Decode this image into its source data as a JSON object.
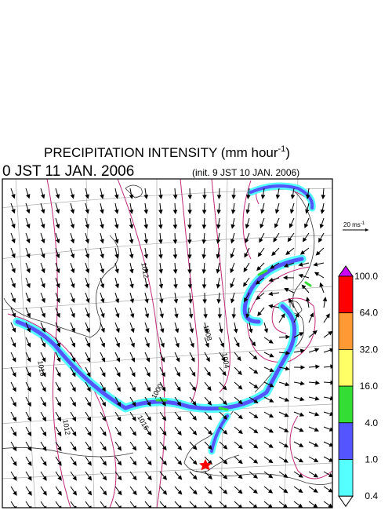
{
  "title": {
    "text": "PRECIPITATION INTENSITY (mm hour",
    "sup": "-1",
    "close": ")"
  },
  "valid_time": "0 JST 11 JAN. 2006",
  "init_time": "(init. 9 JST 10 JAN. 2006)",
  "wind_scale": {
    "label": "20 ms",
    "sup": "-1"
  },
  "colorbar": {
    "levels": [
      "100.0",
      "64.0",
      "32.0",
      "16.0",
      "4.0",
      "1.0",
      "0.4"
    ],
    "colors": [
      "#ff0000",
      "#ff9933",
      "#ffff66",
      "#33dd33",
      "#5555ff",
      "#55ffff"
    ],
    "over_color": "#cc00ff",
    "under_color": "#ffffff"
  },
  "isobar_labels": [
    "1012",
    "1008",
    "1004",
    "1000",
    "1016",
    "1012",
    "1016"
  ]
}
